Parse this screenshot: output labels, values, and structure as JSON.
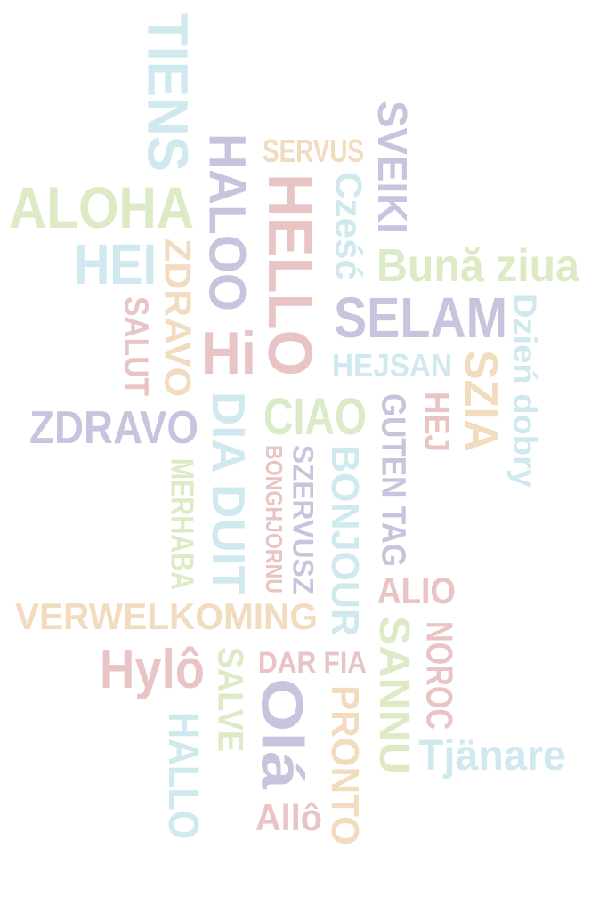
{
  "palette": {
    "blue": "#cfe9ee",
    "green": "#dcebc6",
    "purple": "#c8c4dd",
    "red": "#e8c4c4",
    "orange": "#f2dcc0"
  },
  "words": {
    "tiens": "TIENS",
    "aloha": "ALOHA",
    "hei": "HEI",
    "zdravo_vert": "ZDRAVO",
    "salut": "SALUT",
    "haloo": "HALOO",
    "hi": "Hi",
    "servus": "SERVUS",
    "hello": "HELLO",
    "czesc": "Cześć",
    "sveiki": "SVEIKI",
    "buna_ziua": "Bună ziua",
    "selam": "SELAM",
    "dzien_dobry": "Dzień dobry",
    "hejsan": "HEJSAN",
    "szia": "SZIA",
    "zdravo": "ZDRAVO",
    "dia_duit": "DIA DUIT",
    "ciao": "CIAO",
    "guten_tag": "GUTEN TAG",
    "hej": "HEJ",
    "merhaba": "MERHABA",
    "bonghjornu": "BONGHJORNU",
    "szervusz": "SZERVUSZ",
    "bonjour": "BONJOUR",
    "alio": "ALIO",
    "verwelkoming": "VERWELKOMING",
    "hylo": "Hylô",
    "salve": "SALVE",
    "dar_fia": "DAR FIA",
    "ola": "Olá",
    "pronto": "PRONTO",
    "sannu": "SANNU",
    "noroc": "NOROC",
    "tjanare": "Tjänare",
    "hallo": "HALLO",
    "allo": "Allô"
  }
}
